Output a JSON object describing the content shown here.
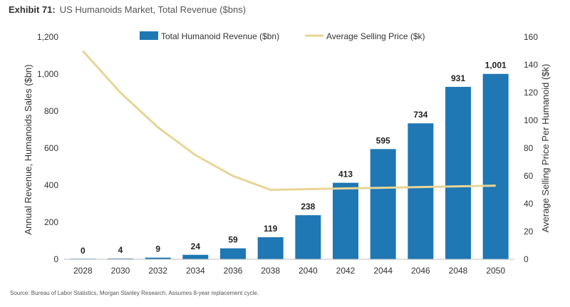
{
  "header": {
    "exhibit_label": "Exhibit 71:",
    "title": "US Humanoids Market, Total Revenue ($bns)"
  },
  "source_note": "Source: Bureau of Labor Statistics, Morgan Stanley Research. Assumes 8-year replacement cycle.",
  "chart_data": {
    "type": "bar",
    "title": "US Humanoids Market, Total Revenue ($bns)",
    "categories": [
      "2028",
      "2030",
      "2032",
      "2034",
      "2036",
      "2038",
      "2040",
      "2042",
      "2044",
      "2046",
      "2048",
      "2050"
    ],
    "series": [
      {
        "name": "Total Humanoid Revenue ($bn)",
        "type": "bar",
        "axis": "left",
        "color": "#1f77b4",
        "values": [
          0,
          4,
          9,
          24,
          59,
          119,
          238,
          413,
          595,
          734,
          931,
          1001
        ],
        "labels": [
          "0",
          "4",
          "9",
          "24",
          "59",
          "119",
          "238",
          "413",
          "595",
          "734",
          "931",
          "1,001"
        ]
      },
      {
        "name": "Average Selling Price ($k)",
        "type": "line",
        "axis": "right",
        "color": "#e8d595",
        "values": [
          150,
          120,
          95,
          75,
          60,
          50,
          50.5,
          51,
          51.5,
          52,
          52.5,
          53
        ]
      }
    ],
    "ylabel": "Annual Revenue, Humanoids Sales ($bn)",
    "ylabel_right": "Average Selling Price Per Humanoid ($k)",
    "ylim": [
      0,
      1200
    ],
    "ylim_right": [
      0,
      160
    ],
    "yticks": [
      "0",
      "200",
      "400",
      "600",
      "800",
      "1,000",
      "1,200"
    ],
    "yticks_right": [
      "0",
      "20",
      "40",
      "60",
      "80",
      "100",
      "120",
      "140",
      "160"
    ],
    "grid": false,
    "legend_position": "top"
  }
}
